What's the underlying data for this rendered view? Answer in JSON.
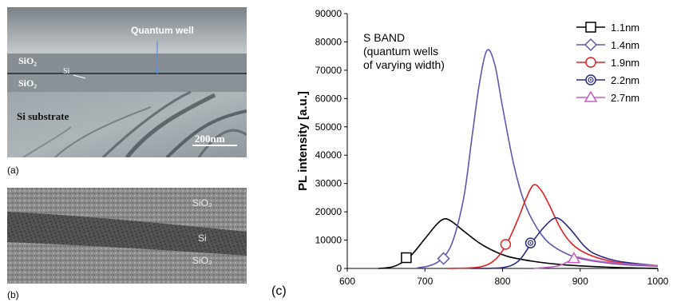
{
  "panel_a": {
    "label": "(a)",
    "annotations": {
      "quantum_well": "Quantum  well",
      "sio2_top": "SiO₂",
      "si": "Si",
      "sio2_bottom": "SiO₂",
      "substrate": "Si substrate",
      "scale_bar": "200nm"
    }
  },
  "panel_b": {
    "label": "(b)",
    "annotations": {
      "sio2_top": "SiO₂",
      "si": "Si",
      "sio2_bottom": "SiO₂"
    }
  },
  "panel_c": {
    "label": "(c)",
    "inset_text": [
      "S BAND",
      "(quantum wells",
      "of varying width)"
    ]
  },
  "chart_data": {
    "type": "line",
    "title": "",
    "xlabel": "",
    "ylabel": "PL intensity [a.u.]",
    "xlim": [
      600,
      1000
    ],
    "ylim": [
      0,
      90000
    ],
    "xticks": [
      "600",
      "700",
      "800",
      "900",
      "1000"
    ],
    "yticks": [
      "0",
      "10000",
      "20000",
      "30000",
      "40000",
      "50000",
      "60000",
      "70000",
      "80000",
      "90000"
    ],
    "legend_position": "top-right",
    "series": [
      {
        "name": "1.1nm",
        "color": "#000000",
        "marker": "square",
        "marker_point": [
          676,
          3800
        ],
        "points": [
          [
            640,
            0
          ],
          [
            660,
            700
          ],
          [
            680,
            4000
          ],
          [
            700,
            10500
          ],
          [
            715,
            15500
          ],
          [
            725,
            17500
          ],
          [
            735,
            16500
          ],
          [
            750,
            13200
          ],
          [
            770,
            9000
          ],
          [
            790,
            6000
          ],
          [
            810,
            4000
          ],
          [
            840,
            2500
          ],
          [
            870,
            1500
          ],
          [
            900,
            900
          ],
          [
            950,
            300
          ],
          [
            1000,
            0
          ]
        ]
      },
      {
        "name": "1.4nm",
        "color": "#5c57b0",
        "marker": "diamond",
        "marker_point": [
          724,
          3500
        ],
        "points": [
          [
            690,
            200
          ],
          [
            705,
            900
          ],
          [
            720,
            3000
          ],
          [
            735,
            9000
          ],
          [
            750,
            25000
          ],
          [
            760,
            45000
          ],
          [
            770,
            65000
          ],
          [
            780,
            77000
          ],
          [
            790,
            72000
          ],
          [
            800,
            57000
          ],
          [
            815,
            36000
          ],
          [
            830,
            22000
          ],
          [
            850,
            12000
          ],
          [
            870,
            7000
          ],
          [
            900,
            3500
          ],
          [
            950,
            1500
          ],
          [
            1000,
            800
          ]
        ]
      },
      {
        "name": "1.9nm",
        "color": "#e02020",
        "marker": "circle",
        "marker_point": [
          804,
          8500
        ],
        "points": [
          [
            730,
            0
          ],
          [
            770,
            500
          ],
          [
            790,
            3000
          ],
          [
            805,
            8500
          ],
          [
            820,
            17500
          ],
          [
            830,
            24500
          ],
          [
            840,
            29500
          ],
          [
            850,
            27500
          ],
          [
            860,
            22500
          ],
          [
            875,
            14000
          ],
          [
            890,
            8500
          ],
          [
            910,
            5000
          ],
          [
            940,
            2500
          ],
          [
            970,
            1500
          ],
          [
            1000,
            1000
          ]
        ]
      },
      {
        "name": "2.2nm",
        "color": "#2a2a80",
        "marker": "dotted-circle",
        "marker_point": [
          836,
          9000
        ],
        "points": [
          [
            760,
            0
          ],
          [
            800,
            300
          ],
          [
            820,
            2500
          ],
          [
            835,
            8000
          ],
          [
            850,
            13500
          ],
          [
            865,
            17500
          ],
          [
            875,
            17200
          ],
          [
            890,
            13000
          ],
          [
            905,
            8000
          ],
          [
            920,
            5000
          ],
          [
            950,
            2500
          ],
          [
            1000,
            1000
          ]
        ]
      },
      {
        "name": "2.7nm",
        "color": "#c060c0",
        "marker": "triangle",
        "marker_point": [
          892,
          3500
        ],
        "points": [
          [
            840,
            0
          ],
          [
            870,
            800
          ],
          [
            885,
            2500
          ],
          [
            895,
            4000
          ],
          [
            905,
            3500
          ],
          [
            920,
            2700
          ],
          [
            950,
            1800
          ],
          [
            1000,
            1000
          ]
        ]
      }
    ]
  }
}
